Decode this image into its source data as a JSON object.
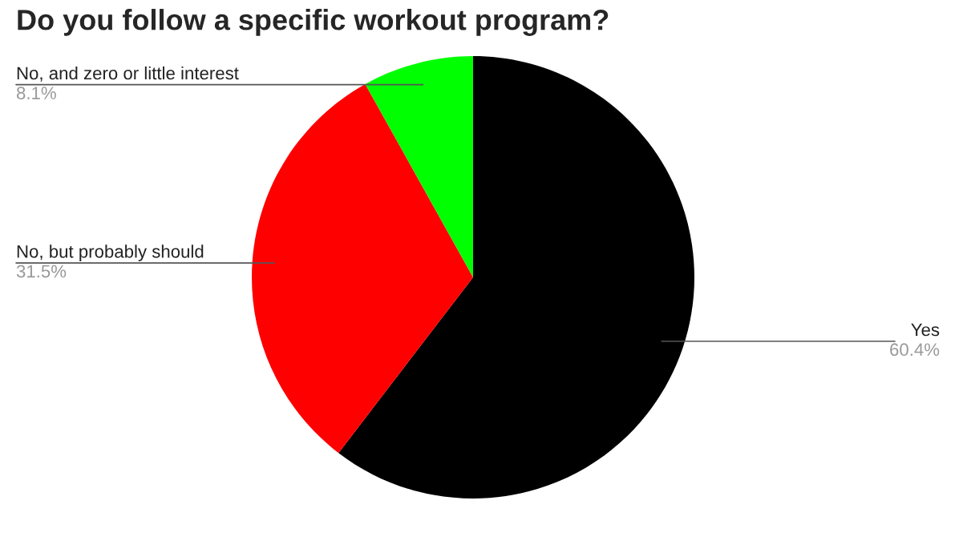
{
  "chart_data": {
    "type": "pie",
    "title": "Do you follow a specific workout program?",
    "categories": [
      "Yes",
      "No, but probably should",
      "No, and zero or little interest"
    ],
    "values": [
      60.4,
      31.5,
      8.1
    ],
    "value_labels": [
      "60.4%",
      "31.5%",
      "8.1%"
    ],
    "colors": [
      "#000000",
      "#ff0000",
      "#00ff00"
    ],
    "legend": false
  }
}
